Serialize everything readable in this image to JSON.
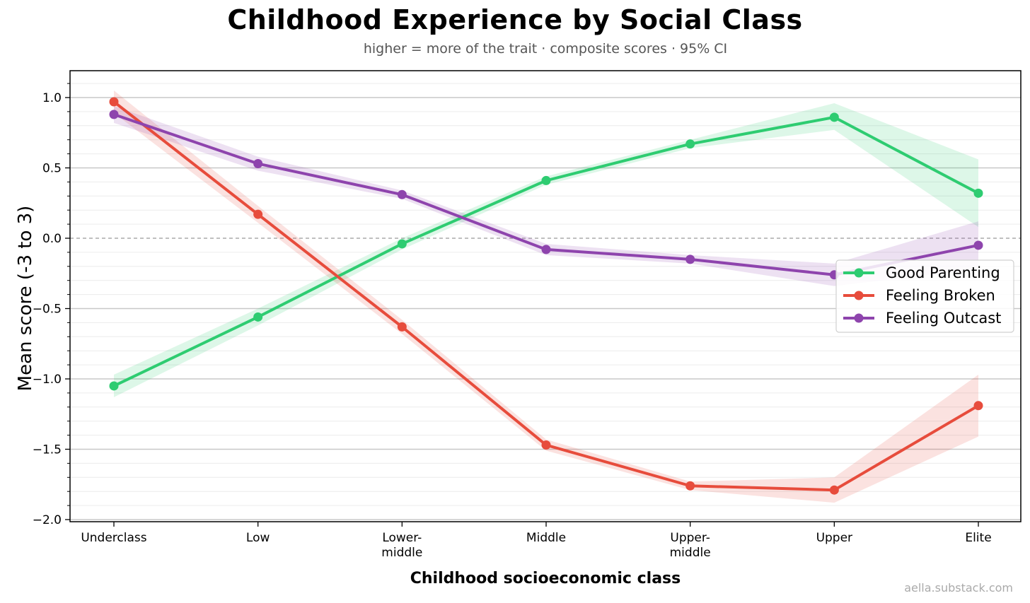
{
  "chart_data": {
    "type": "line",
    "title": "Childhood Experience by Social Class",
    "subtitle": "higher = more of the trait · composite scores · 95% CI",
    "xlabel": "Childhood socioeconomic class",
    "ylabel": "Mean score (-3 to 3)",
    "credit": "aella.substack.com",
    "categories": [
      "Underclass",
      "Low",
      "Lower-\nmiddle",
      "Middle",
      "Upper-\nmiddle",
      "Upper",
      "Elite"
    ],
    "ylim": [
      -2.0,
      1.2
    ],
    "yticks": [
      1.0,
      0.5,
      0.0,
      -0.5,
      -1.0,
      -1.5,
      -2.0
    ],
    "ytick_labels": [
      "1.0",
      "0.5",
      "0.0",
      "−0.5",
      "−1.0",
      "−1.5",
      "−2.0"
    ],
    "reference_line": 0.0,
    "legend_position": "center-right",
    "series": [
      {
        "name": "Good Parenting",
        "color": "#2ecc71",
        "values": [
          -1.05,
          -0.56,
          -0.04,
          0.41,
          0.67,
          0.86,
          0.32
        ],
        "ci_low": [
          -1.13,
          -0.62,
          -0.08,
          0.38,
          0.64,
          0.77,
          0.08
        ],
        "ci_high": [
          -0.97,
          -0.5,
          0.0,
          0.44,
          0.7,
          0.96,
          0.56
        ]
      },
      {
        "name": "Feeling Broken",
        "color": "#e74c3c",
        "values": [
          0.97,
          0.17,
          -0.63,
          -1.47,
          -1.76,
          -1.79,
          -1.19
        ],
        "ci_low": [
          0.89,
          0.11,
          -0.68,
          -1.51,
          -1.79,
          -1.88,
          -1.41
        ],
        "ci_high": [
          1.05,
          0.23,
          -0.58,
          -1.43,
          -1.73,
          -1.7,
          -0.97
        ]
      },
      {
        "name": "Feeling Outcast",
        "color": "#8e44ad",
        "values": [
          0.88,
          0.53,
          0.31,
          -0.08,
          -0.15,
          -0.26,
          -0.05
        ],
        "ci_low": [
          0.82,
          0.48,
          0.28,
          -0.12,
          -0.18,
          -0.34,
          -0.22
        ],
        "ci_high": [
          0.94,
          0.58,
          0.34,
          -0.04,
          -0.12,
          -0.18,
          0.12
        ]
      }
    ]
  }
}
